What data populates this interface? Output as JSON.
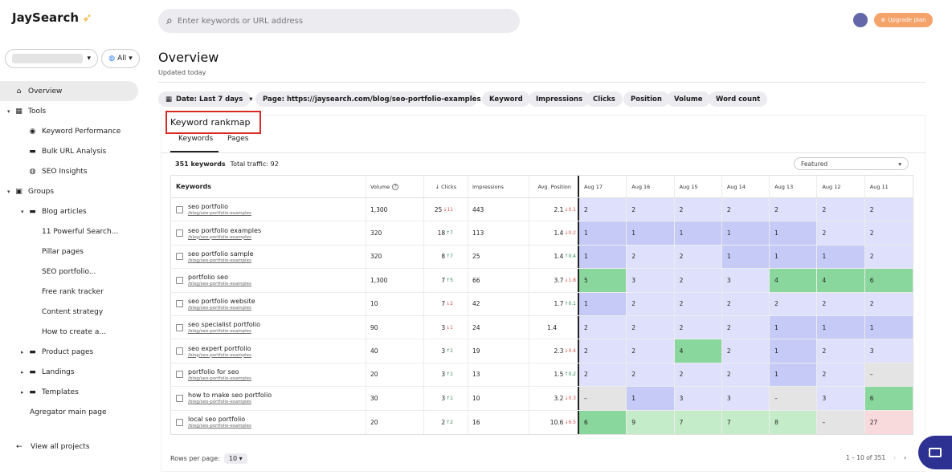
{
  "app": {
    "name": "JaySearch"
  },
  "header": {
    "search_placeholder": "Enter keywords or URL address",
    "upgrade_label": "Upgrade plan"
  },
  "sidebar": {
    "scope_label": "All",
    "items": [
      {
        "label": "Overview",
        "icon": "home-icon",
        "level": 0,
        "active": true
      },
      {
        "label": "Tools",
        "icon": "grid-icon",
        "level": 0,
        "expandable": true
      },
      {
        "label": "Keyword Performance",
        "icon": "signal-icon",
        "level": 1
      },
      {
        "label": "Bulk URL Analysis",
        "icon": "folder-icon",
        "level": 1
      },
      {
        "label": "SEO Insights",
        "icon": "info-circle-icon",
        "level": 1
      },
      {
        "label": "Groups",
        "icon": "groups-icon",
        "level": 0,
        "expandable": true
      },
      {
        "label": "Blog articles",
        "icon": "folder-icon",
        "level": 1,
        "expandable": true
      },
      {
        "label": "11 Powerful Search...",
        "level": 2
      },
      {
        "label": "Pillar pages",
        "level": 2
      },
      {
        "label": "SEO portfolio...",
        "level": 2
      },
      {
        "label": "Free rank tracker",
        "level": 2
      },
      {
        "label": "Content strategy",
        "level": 2
      },
      {
        "label": "How to create a...",
        "level": 2
      },
      {
        "label": "Product pages",
        "icon": "folder-icon",
        "level": 1,
        "expandable": true
      },
      {
        "label": "Landings",
        "icon": "folder-icon",
        "level": 1,
        "expandable": true
      },
      {
        "label": "Templates",
        "icon": "folder-icon",
        "level": 1,
        "expandable": true
      },
      {
        "label": "Agregator main page",
        "level": 1
      }
    ],
    "view_all_label": "View all projects"
  },
  "main": {
    "title": "Overview",
    "updated": "Updated today",
    "filters": [
      {
        "label": "Date: Last 7 days",
        "has_icon": true,
        "has_dropdown": true
      },
      {
        "label": "Page: https://jaysearch.com/blog/seo-portfolio-examples",
        "has_close": true
      },
      {
        "label": "Keyword"
      },
      {
        "label": "Impressions"
      },
      {
        "label": "Clicks"
      },
      {
        "label": "Position"
      },
      {
        "label": "Volume"
      },
      {
        "label": "Word count"
      }
    ]
  },
  "rankmap": {
    "title": "Keyword rankmap",
    "tabs": [
      "Keywords",
      "Pages"
    ],
    "count": "351 keywords",
    "traffic": "Total traffic: 92",
    "sort_select": "Featured",
    "columns": {
      "keywords": "Keywords",
      "volume": "Volume",
      "clicks": "Clicks",
      "impressions": "Impressions",
      "position": "Avg. Position",
      "days": [
        "Aug 17",
        "Aug 16",
        "Aug 15",
        "Aug 14",
        "Aug 13",
        "Aug 12",
        "Aug 11"
      ]
    },
    "rows": [
      {
        "kw": "seo portfolio",
        "url": "/blog/seo-portfolio-examples",
        "vol": "1,300",
        "clicks": "25",
        "cd": "11",
        "cdir": "dn",
        "imp": "443",
        "pos": "2.1",
        "pd": "0.1",
        "pdir": "dn",
        "days": [
          [
            "2",
            "p2"
          ],
          [
            "2",
            "p2"
          ],
          [
            "2",
            "p2"
          ],
          [
            "2",
            "p2"
          ],
          [
            "2",
            "p2"
          ],
          [
            "2",
            "p2"
          ],
          [
            "2",
            "p2"
          ]
        ]
      },
      {
        "kw": "seo portfolio examples",
        "url": "/blog/seo-portfolio-examples",
        "vol": "320",
        "clicks": "18",
        "cd": "7",
        "cdir": "up",
        "imp": "113",
        "pos": "1.4",
        "pd": "0.2",
        "pdir": "dn",
        "days": [
          [
            "1",
            "p1"
          ],
          [
            "1",
            "p1"
          ],
          [
            "1",
            "p1"
          ],
          [
            "1",
            "p1"
          ],
          [
            "1",
            "p1"
          ],
          [
            "2",
            "p2"
          ],
          [
            "2",
            "p2"
          ]
        ]
      },
      {
        "kw": "seo portfolio sample",
        "url": "/blog/seo-portfolio-examples",
        "vol": "320",
        "clicks": "8",
        "cd": "7",
        "cdir": "up",
        "imp": "25",
        "pos": "1.4",
        "pd": "0.4",
        "pdir": "up",
        "days": [
          [
            "1",
            "p1"
          ],
          [
            "2",
            "p2"
          ],
          [
            "2",
            "p2"
          ],
          [
            "1",
            "p1"
          ],
          [
            "1",
            "p1"
          ],
          [
            "1",
            "p1"
          ],
          [
            "2",
            "p2"
          ]
        ]
      },
      {
        "kw": "portfolio seo",
        "url": "/blog/seo-portfolio-examples",
        "vol": "1,300",
        "clicks": "7",
        "cd": "5",
        "cdir": "up",
        "imp": "66",
        "pos": "3.7",
        "pd": "1.8",
        "pdir": "dn",
        "days": [
          [
            "5",
            "g"
          ],
          [
            "3",
            "p3"
          ],
          [
            "2",
            "p2"
          ],
          [
            "3",
            "p3"
          ],
          [
            "4",
            "g"
          ],
          [
            "4",
            "g"
          ],
          [
            "6",
            "g"
          ]
        ]
      },
      {
        "kw": "seo portfolio website",
        "url": "/blog/seo-portfolio-examples",
        "vol": "10",
        "clicks": "7",
        "cd": "2",
        "cdir": "dn",
        "imp": "42",
        "pos": "1.7",
        "pd": "0.1",
        "pdir": "up",
        "days": [
          [
            "1",
            "p1"
          ],
          [
            "2",
            "p2"
          ],
          [
            "2",
            "p2"
          ],
          [
            "2",
            "p2"
          ],
          [
            "2",
            "p2"
          ],
          [
            "2",
            "p2"
          ],
          [
            "2",
            "p2"
          ]
        ]
      },
      {
        "kw": "seo specialist portfolio",
        "url": "/blog/seo-portfolio-examples",
        "vol": "90",
        "clicks": "3",
        "cd": "1",
        "cdir": "dn",
        "imp": "24",
        "pos": "1.4",
        "pd": "",
        "pdir": "",
        "days": [
          [
            "2",
            "p2"
          ],
          [
            "2",
            "p2"
          ],
          [
            "2",
            "p2"
          ],
          [
            "2",
            "p2"
          ],
          [
            "1",
            "p1"
          ],
          [
            "1",
            "p1"
          ],
          [
            "1",
            "p1"
          ]
        ]
      },
      {
        "kw": "seo expert portfolio",
        "url": "/blog/seo-portfolio-examples",
        "vol": "40",
        "clicks": "3",
        "cd": "1",
        "cdir": "up",
        "imp": "19",
        "pos": "2.3",
        "pd": "0.4",
        "pdir": "dn",
        "days": [
          [
            "2",
            "p2"
          ],
          [
            "2",
            "p2"
          ],
          [
            "4",
            "g"
          ],
          [
            "2",
            "p2"
          ],
          [
            "1",
            "p1"
          ],
          [
            "2",
            "p2"
          ],
          [
            "3",
            "p3"
          ]
        ]
      },
      {
        "kw": "portfolio for seo",
        "url": "/blog/seo-portfolio-examples",
        "vol": "20",
        "clicks": "3",
        "cd": "1",
        "cdir": "up",
        "imp": "13",
        "pos": "1.5",
        "pd": "0.2",
        "pdir": "up",
        "days": [
          [
            "2",
            "p2"
          ],
          [
            "2",
            "p2"
          ],
          [
            "2",
            "p2"
          ],
          [
            "2",
            "p2"
          ],
          [
            "1",
            "p1"
          ],
          [
            "2",
            "p2"
          ],
          [
            "–",
            "gr"
          ]
        ]
      },
      {
        "kw": "how to make seo portfolio",
        "url": "/blog/seo-portfolio-examples",
        "vol": "30",
        "clicks": "3",
        "cd": "1",
        "cdir": "up",
        "imp": "10",
        "pos": "3.2",
        "pd": "0.3",
        "pdir": "dn",
        "days": [
          [
            "–",
            "gr"
          ],
          [
            "1",
            "p1"
          ],
          [
            "3",
            "p3"
          ],
          [
            "3",
            "p3"
          ],
          [
            "–",
            "gr"
          ],
          [
            "3",
            "p3"
          ],
          [
            "6",
            "g"
          ]
        ]
      },
      {
        "kw": "local seo portfolio",
        "url": "/blog/seo-portfolio-examples",
        "vol": "20",
        "clicks": "2",
        "cd": "2",
        "cdir": "up",
        "imp": "16",
        "pos": "10.6",
        "pd": "6.5",
        "pdir": "dn",
        "days": [
          [
            "6",
            "g"
          ],
          [
            "9",
            "lg"
          ],
          [
            "7",
            "lg"
          ],
          [
            "7",
            "lg"
          ],
          [
            "8",
            "lg"
          ],
          [
            "–",
            "gr"
          ],
          [
            "27",
            "pk"
          ]
        ]
      }
    ],
    "rows_per_page_label": "Rows per page:",
    "rows_per_page": "10",
    "pagination": "1 – 10 of 351"
  },
  "colors": {
    "accent": "#2d3192",
    "upgrade": "#f4a36b",
    "highlight_border": "#d92828"
  }
}
